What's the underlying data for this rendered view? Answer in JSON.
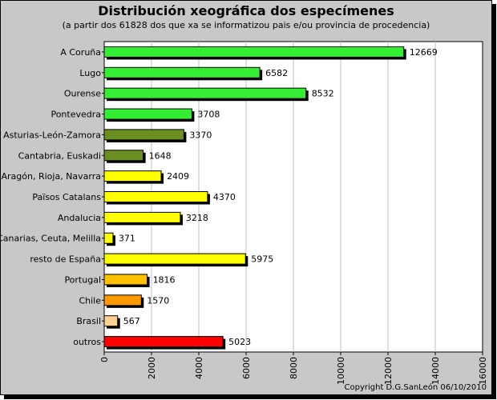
{
  "header": {
    "title": "Distribución xeográfica dos especímenes",
    "subtitle": "(a partir dos 61828 dos que xa se informatizou pais e/ou provincia de procedencia)"
  },
  "footer": {
    "copyright": "Copyright D.G.SanLeón 06/10/2010"
  },
  "chart_data": {
    "type": "bar",
    "orientation": "horizontal",
    "title": "Distribución xeográfica dos especímenes",
    "subtitle": "(a partir dos 61828 dos que xa se informatizou pais e/ou provincia de procedencia)",
    "xlabel": "",
    "ylabel": "",
    "xlim": [
      0,
      16000
    ],
    "xticks": [
      0,
      2000,
      4000,
      6000,
      8000,
      10000,
      12000,
      14000,
      16000
    ],
    "grid": true,
    "legend": "none",
    "categories": [
      "A Coruña",
      "Lugo",
      "Ourense",
      "Pontevedra",
      "Asturias-León-Zamora",
      "Cantabria, Euskadi",
      "Aragón, Rioja, Navarra",
      "Països Catalans",
      "Andalucia",
      "Canarias, Ceuta, Melilla",
      "resto de España",
      "Portugal",
      "Chile",
      "Brasil",
      "outros"
    ],
    "values": [
      12669,
      6582,
      8532,
      3708,
      3370,
      1648,
      2409,
      4370,
      3218,
      371,
      5975,
      1816,
      1570,
      567,
      5023
    ],
    "colors": [
      "#33ee33",
      "#33ee33",
      "#33ee33",
      "#33ee33",
      "#6b8e23",
      "#6b8e23",
      "#ffff00",
      "#ffff00",
      "#ffff00",
      "#ffff00",
      "#ffff00",
      "#ffc000",
      "#ff9900",
      "#ffd090",
      "#ff0000"
    ]
  }
}
